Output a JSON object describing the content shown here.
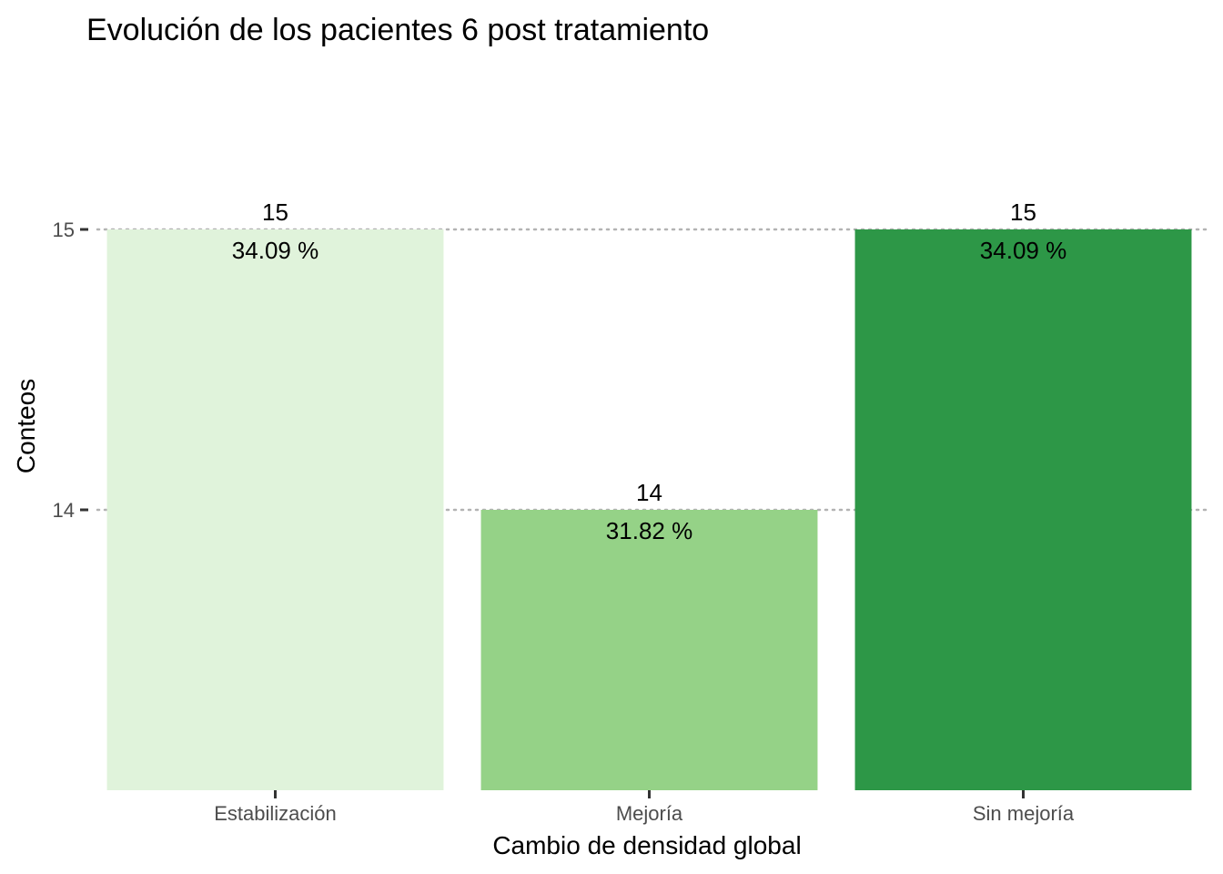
{
  "chart_data": {
    "type": "bar",
    "title": "Evolución de los pacientes 6 post tratamiento",
    "xlabel": "Cambio de densidad global",
    "ylabel": "Conteos",
    "categories": [
      "Estabilización",
      "Mejoría",
      "Sin mejoría"
    ],
    "values": [
      15,
      14,
      15
    ],
    "percent_labels": [
      "34.09 %",
      "31.82 %",
      "34.09 %"
    ],
    "colors": [
      "#e0f3db",
      "#95d287",
      "#2d9747"
    ],
    "ylim": [
      13,
      15
    ],
    "yticks": [
      14,
      15
    ],
    "grid": "horizontal-dotted",
    "legend": "none"
  }
}
